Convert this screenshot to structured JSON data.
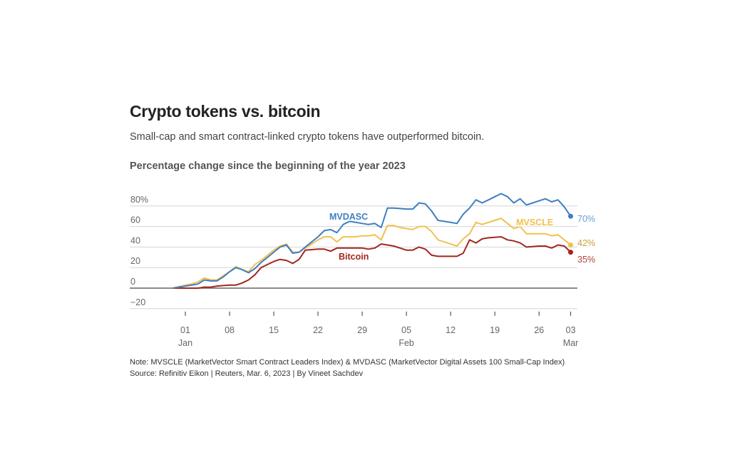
{
  "header": {
    "title": "Crypto tokens vs. bitcoin",
    "subtitle": "Small-cap and smart contract-linked crypto tokens have outperformed bitcoin.",
    "chart_heading": "Percentage change since the beginning of the year 2023"
  },
  "footer": {
    "note": "Note: MVSCLE (MarketVector Smart Contract Leaders Index) & MVDASC (MarketVector Digital Assets 100 Small-Cap Index)",
    "source": "Source: Refinitiv Eikon | Reuters, Mar. 6, 2023 | By Vineet Sachdev"
  },
  "chart_data": {
    "type": "line",
    "title": "Crypto tokens vs. bitcoin",
    "ylabel": "Percentage change since the beginning of the year 2023",
    "xlabel": "",
    "ylim": [
      -20,
      80
    ],
    "grid": true,
    "y_ticks": [
      {
        "v": 80,
        "label": "80%"
      },
      {
        "v": 60,
        "label": "60"
      },
      {
        "v": 40,
        "label": "40"
      },
      {
        "v": 20,
        "label": "20"
      },
      {
        "v": 0,
        "label": "0"
      },
      {
        "v": -20,
        "label": "−20"
      }
    ],
    "x_ticks": [
      {
        "day": 0,
        "label": "01",
        "sub": "Jan"
      },
      {
        "day": 7,
        "label": "08",
        "sub": ""
      },
      {
        "day": 14,
        "label": "15",
        "sub": ""
      },
      {
        "day": 21,
        "label": "22",
        "sub": ""
      },
      {
        "day": 28,
        "label": "29",
        "sub": ""
      },
      {
        "day": 35,
        "label": "05",
        "sub": "Feb"
      },
      {
        "day": 42,
        "label": "12",
        "sub": ""
      },
      {
        "day": 49,
        "label": "19",
        "sub": ""
      },
      {
        "day": 56,
        "label": "26",
        "sub": ""
      },
      {
        "day": 61,
        "label": "03",
        "sub": "Mar"
      }
    ],
    "x_days_since_jan1": [
      -2,
      -1,
      0,
      1,
      2,
      3,
      4,
      5,
      6,
      7,
      8,
      9,
      10,
      11,
      12,
      13,
      14,
      15,
      16,
      17,
      18,
      19,
      20,
      21,
      22,
      23,
      24,
      25,
      26,
      27,
      28,
      29,
      30,
      31,
      32,
      33,
      34,
      35,
      36,
      37,
      38,
      39,
      40,
      41,
      42,
      43,
      44,
      45,
      46,
      47,
      48,
      49,
      50,
      51,
      52,
      53,
      54,
      55,
      56,
      57,
      58,
      59,
      60,
      61
    ],
    "series": [
      {
        "name": "MVDASC",
        "color": "#3f7fbf",
        "end_label": "70%",
        "values": [
          0,
          1,
          2,
          3,
          4,
          8,
          7,
          7,
          11,
          16,
          20,
          18,
          15,
          19,
          25,
          30,
          35,
          40,
          42,
          34,
          35,
          40,
          45,
          50,
          56,
          57,
          54,
          62,
          65,
          64,
          63,
          62,
          63,
          59,
          78,
          78,
          77.5,
          77,
          77,
          83,
          82,
          75,
          66,
          65,
          64,
          63,
          72,
          78,
          86,
          83,
          86,
          89,
          92,
          89,
          83,
          87,
          81,
          83,
          85,
          87,
          84,
          86,
          79,
          70
        ]
      },
      {
        "name": "MVSCLE",
        "color": "#f2c14e",
        "end_label": "42%",
        "values": [
          0,
          1.5,
          3,
          4,
          6,
          10,
          8,
          8,
          12,
          16,
          21,
          18,
          16,
          23,
          27,
          32,
          37,
          41,
          43,
          35,
          35,
          39,
          43,
          47,
          50,
          50,
          45,
          50,
          50,
          50,
          51,
          51,
          52,
          47,
          61,
          61,
          59,
          58,
          57,
          60,
          60,
          55,
          47,
          45,
          43,
          41,
          48,
          53,
          64,
          62,
          64,
          66,
          68,
          63,
          58,
          60,
          53,
          53,
          53,
          53,
          51,
          52,
          47,
          42
        ]
      },
      {
        "name": "Bitcoin",
        "color": "#a3261f",
        "end_label": "35%",
        "values": [
          0,
          0,
          0,
          0,
          0,
          1,
          1,
          2,
          2.5,
          3,
          3,
          5,
          8,
          13,
          20,
          23,
          26,
          28,
          27,
          24,
          28,
          37,
          37.5,
          38,
          38,
          36,
          39,
          39,
          39,
          39,
          39,
          38,
          39,
          43,
          42,
          41,
          39,
          37,
          37,
          40,
          38,
          32,
          31,
          31,
          31,
          31,
          34,
          47,
          44,
          48,
          49,
          49.5,
          50,
          47,
          46,
          44,
          40,
          40.5,
          41,
          41,
          39,
          42,
          41,
          35
        ]
      }
    ]
  }
}
